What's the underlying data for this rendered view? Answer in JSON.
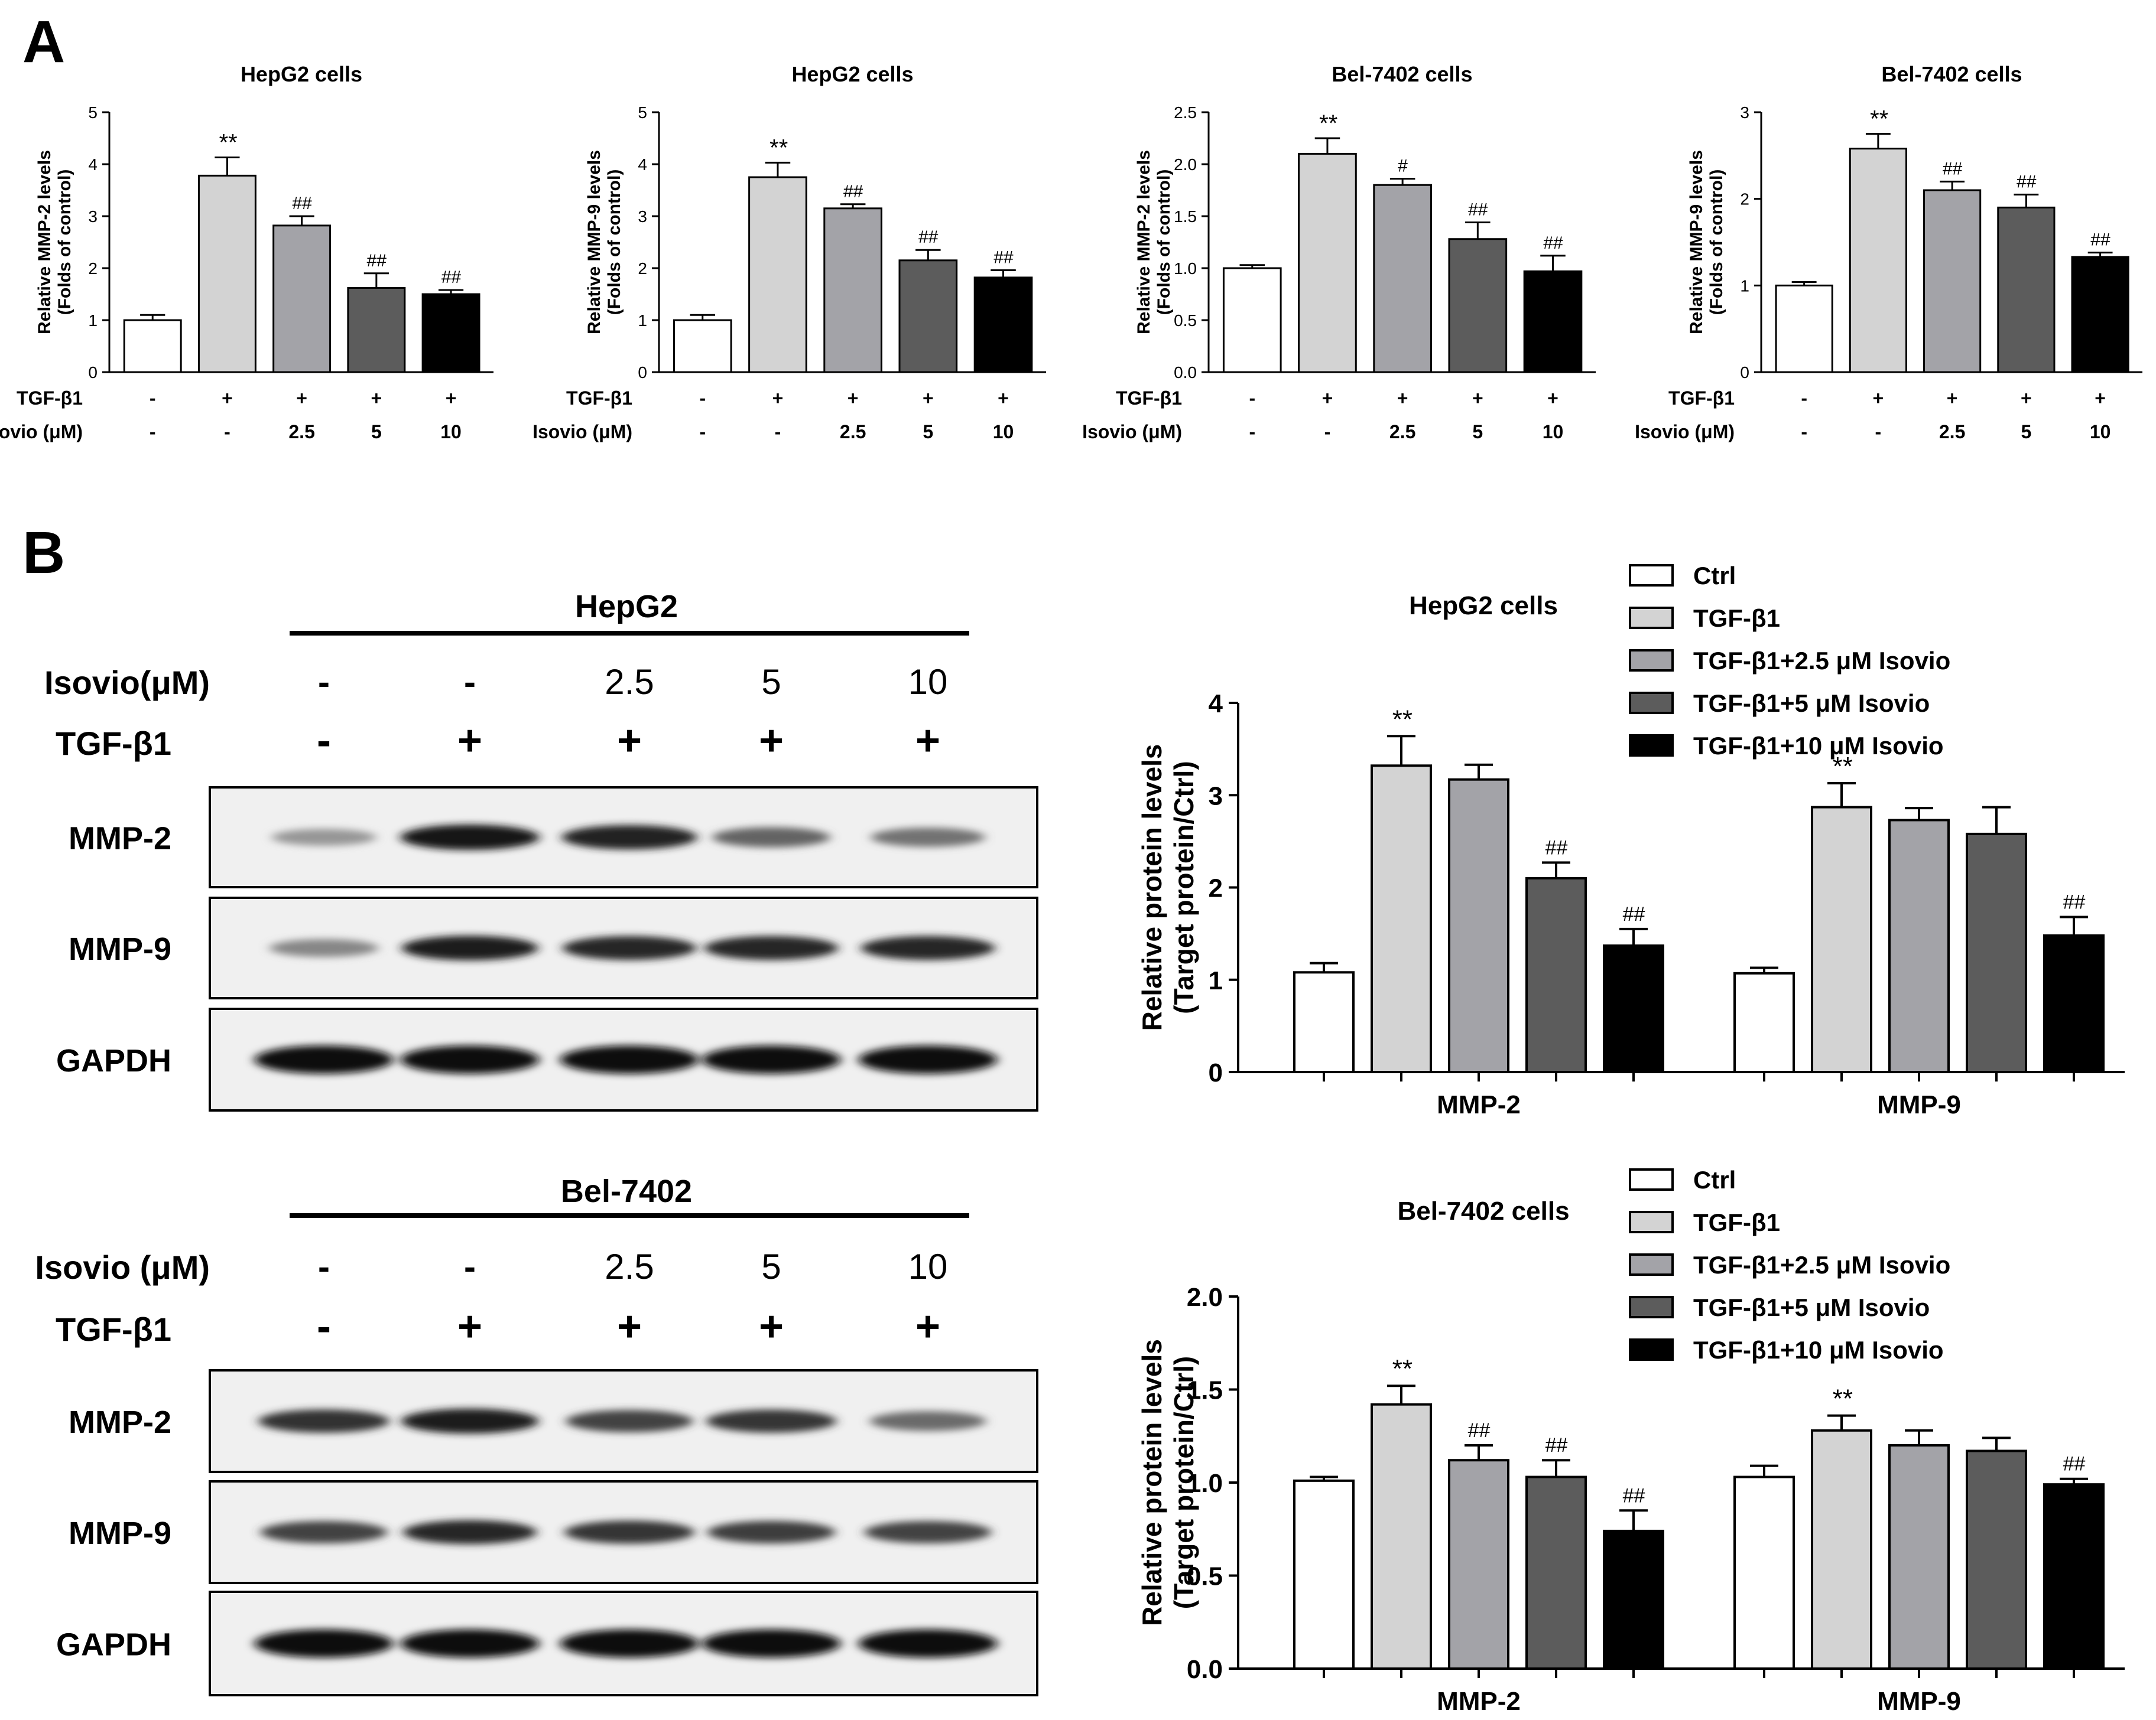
{
  "panel_a_label": "A",
  "panel_b_label": "B",
  "colors": {
    "ctrl": "#ffffff",
    "tgf": "#d3d3d3",
    "iso25": "#a3a3a8",
    "iso5": "#5c5c5c",
    "iso10": "#000000"
  },
  "panel_a": {
    "row_labels": {
      "tgf": "TGF-β1",
      "isovio": "Isovio (μM)"
    },
    "tgf_signs": [
      "-",
      "+",
      "+",
      "+",
      "+"
    ],
    "isovio_values": [
      "-",
      "-",
      "2.5",
      "5",
      "10"
    ]
  },
  "chart_data": [
    {
      "type": "bar",
      "title": "HepG2 cells",
      "ylabel": "Relative MMP-2 levels\n(Folds of control)",
      "ylim": [
        0,
        5
      ],
      "yticks": [
        "0",
        "1",
        "2",
        "3",
        "4",
        "5"
      ],
      "values": [
        1.0,
        3.78,
        2.82,
        1.62,
        1.5
      ],
      "errors": [
        0.1,
        0.35,
        0.18,
        0.28,
        0.08
      ],
      "annotations": [
        "",
        "**",
        "##",
        "##",
        "##"
      ]
    },
    {
      "type": "bar",
      "title": "HepG2 cells",
      "ylabel": "Relative MMP-9 levels\n(Folds of control)",
      "ylim": [
        0,
        5
      ],
      "yticks": [
        "0",
        "1",
        "2",
        "3",
        "4",
        "5"
      ],
      "values": [
        1.0,
        3.75,
        3.15,
        2.15,
        1.82
      ],
      "errors": [
        0.1,
        0.28,
        0.08,
        0.2,
        0.14
      ],
      "annotations": [
        "",
        "**",
        "##",
        "##",
        "##"
      ]
    },
    {
      "type": "bar",
      "title": "Bel-7402 cells",
      "ylabel": "Relative MMP-2 levels\n(Folds of control)",
      "ylim": [
        0,
        2.5
      ],
      "yticks": [
        "0.0",
        "0.5",
        "1.0",
        "1.5",
        "2.0",
        "2.5"
      ],
      "values": [
        1.0,
        2.1,
        1.8,
        1.28,
        0.97
      ],
      "errors": [
        0.03,
        0.15,
        0.06,
        0.16,
        0.15
      ],
      "annotations": [
        "",
        "**",
        "#",
        "##",
        "##"
      ]
    },
    {
      "type": "bar",
      "title": "Bel-7402 cells",
      "ylabel": "Relative MMP-9 levels\n(Folds of control)",
      "ylim": [
        0,
        3
      ],
      "yticks": [
        "0",
        "1",
        "2",
        "3"
      ],
      "values": [
        1.0,
        2.58,
        2.1,
        1.9,
        1.33
      ],
      "errors": [
        0.04,
        0.17,
        0.1,
        0.15,
        0.05
      ],
      "annotations": [
        "",
        "**",
        "##",
        "##",
        "##"
      ]
    },
    {
      "type": "bar",
      "title": "HepG2 cells",
      "ylabel": "Relative protein levels\n(Target protein/Ctrl)",
      "ylim": [
        0,
        4
      ],
      "yticks": [
        "0",
        "1",
        "2",
        "3",
        "4"
      ],
      "categories": [
        "MMP-2",
        "MMP-9"
      ],
      "series": [
        {
          "name": "Ctrl",
          "values": [
            1.08,
            1.07
          ],
          "errors": [
            0.1,
            0.06
          ],
          "annotations": [
            "",
            ""
          ]
        },
        {
          "name": "TGF-β1",
          "values": [
            3.32,
            2.87
          ],
          "errors": [
            0.32,
            0.26
          ],
          "annotations": [
            "**",
            "**"
          ]
        },
        {
          "name": "TGF-β1+2.5 μM Isovio",
          "values": [
            3.17,
            2.73
          ],
          "errors": [
            0.16,
            0.13
          ],
          "annotations": [
            "",
            ""
          ]
        },
        {
          "name": "TGF-β1+5 μM Isovio",
          "values": [
            2.1,
            2.58
          ],
          "errors": [
            0.17,
            0.29
          ],
          "annotations": [
            "##",
            ""
          ]
        },
        {
          "name": "TGF-β1+10 μM Isovio",
          "values": [
            1.37,
            1.48
          ],
          "errors": [
            0.18,
            0.2
          ],
          "annotations": [
            "##",
            "##"
          ]
        }
      ]
    },
    {
      "type": "bar",
      "title": "Bel-7402 cells",
      "ylabel": "Relative protein levels\n(Target protein/Ctrl)",
      "ylim": [
        0,
        2
      ],
      "yticks": [
        "0.0",
        "0.5",
        "1.0",
        "1.5",
        "2.0"
      ],
      "categories": [
        "MMP-2",
        "MMP-9"
      ],
      "series": [
        {
          "name": "Ctrl",
          "values": [
            1.01,
            1.03
          ],
          "errors": [
            0.02,
            0.06
          ],
          "annotations": [
            "",
            ""
          ]
        },
        {
          "name": "TGF-β1",
          "values": [
            1.42,
            1.28
          ],
          "errors": [
            0.1,
            0.08
          ],
          "annotations": [
            "**",
            "**"
          ]
        },
        {
          "name": "TGF-β1+2.5 μM Isovio",
          "values": [
            1.12,
            1.2
          ],
          "errors": [
            0.08,
            0.08
          ],
          "annotations": [
            "##",
            ""
          ]
        },
        {
          "name": "TGF-β1+5 μM Isovio",
          "values": [
            1.03,
            1.17
          ],
          "errors": [
            0.09,
            0.07
          ],
          "annotations": [
            "##",
            ""
          ]
        },
        {
          "name": "TGF-β1+10 μM Isovio",
          "values": [
            0.74,
            0.99
          ],
          "errors": [
            0.11,
            0.03
          ],
          "annotations": [
            "##",
            "##"
          ]
        }
      ]
    }
  ],
  "blots": [
    {
      "cell_line": "HepG2",
      "isovio_label": "Isovio(μM)",
      "tgf_label": "TGF-β1",
      "isovio_values": [
        "-",
        "-",
        "2.5",
        "5",
        "10"
      ],
      "tgf_signs": [
        "-",
        "+",
        "+",
        "+",
        "+"
      ],
      "bands": [
        {
          "name": "MMP-2",
          "intensity": [
            0.3,
            0.95,
            0.88,
            0.55,
            0.48
          ]
        },
        {
          "name": "MMP-9",
          "intensity": [
            0.38,
            0.9,
            0.85,
            0.85,
            0.85
          ]
        },
        {
          "name": "GAPDH",
          "intensity": [
            1,
            1,
            1,
            1,
            1
          ]
        }
      ]
    },
    {
      "cell_line": "Bel-7402",
      "isovio_label": "Isovio (μM)",
      "tgf_label": "TGF-β1",
      "isovio_values": [
        "-",
        "-",
        "2.5",
        "5",
        "10"
      ],
      "tgf_signs": [
        "-",
        "+",
        "+",
        "+",
        "+"
      ],
      "bands": [
        {
          "name": "MMP-2",
          "intensity": [
            0.8,
            0.92,
            0.72,
            0.78,
            0.52
          ]
        },
        {
          "name": "MMP-9",
          "intensity": [
            0.72,
            0.85,
            0.78,
            0.74,
            0.72
          ]
        },
        {
          "name": "GAPDH",
          "intensity": [
            1,
            1,
            1,
            1,
            1
          ]
        }
      ]
    }
  ]
}
